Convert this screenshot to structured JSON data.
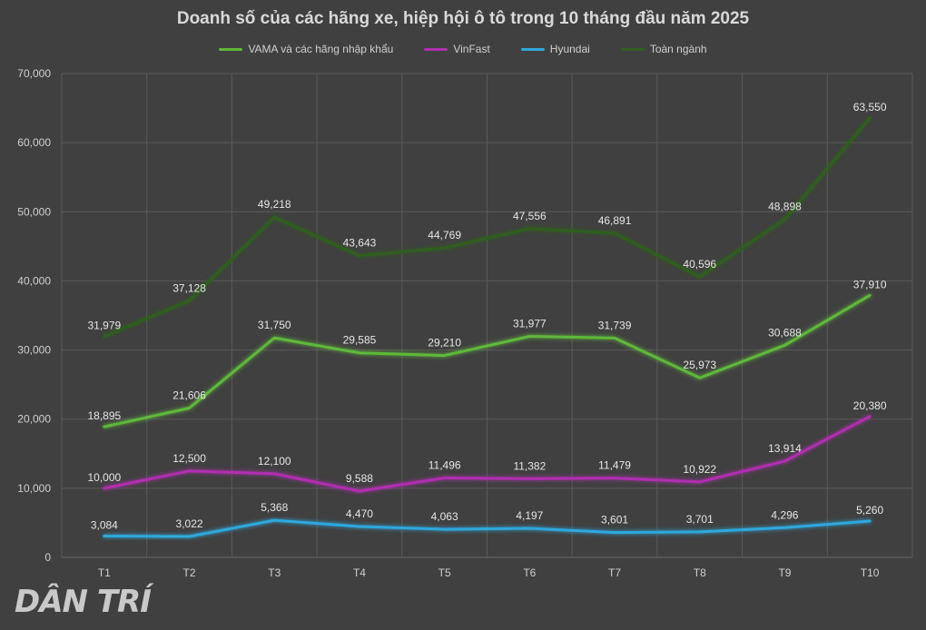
{
  "chart_data": {
    "type": "line",
    "title": "Doanh số của các hãng xe, hiệp hội ô tô trong 10 tháng đầu năm 2025",
    "categories": [
      "T1",
      "T2",
      "T3",
      "T4",
      "T5",
      "T6",
      "T7",
      "T8",
      "T9",
      "T10"
    ],
    "ylim": [
      0,
      70000
    ],
    "yticks": [
      "0",
      "10,000",
      "20,000",
      "30,000",
      "40,000",
      "50,000",
      "60,000",
      "70,000"
    ],
    "grid": true,
    "legend_position": "top",
    "series": [
      {
        "name": "VAMA và các hãng nhập khẩu",
        "color": "#5fb83a",
        "values": [
          18895,
          21606,
          31750,
          29585,
          29210,
          31977,
          31739,
          25973,
          30688,
          37910
        ],
        "labels": [
          "18,895",
          "21,606",
          "31,750",
          "29,585",
          "29,210",
          "31,977",
          "31,739",
          "25,973",
          "30,688",
          "37,910"
        ]
      },
      {
        "name": "VinFast",
        "color": "#b02fb0",
        "values": [
          10000,
          12500,
          12100,
          9588,
          11496,
          11382,
          11479,
          10922,
          13914,
          20380
        ],
        "labels": [
          "10,000",
          "12,500",
          "12,100",
          "9,588",
          "11,496",
          "11,382",
          "11,479",
          "10,922",
          "13,914",
          "20,380"
        ]
      },
      {
        "name": "Hyundai",
        "color": "#2ea8dc",
        "values": [
          3084,
          3022,
          5368,
          4470,
          4063,
          4197,
          3601,
          3701,
          4296,
          5260
        ],
        "labels": [
          "3,084",
          "3,022",
          "5,368",
          "4,470",
          "4,063",
          "4,197",
          "3,601",
          "3,701",
          "4,296",
          "5,260"
        ]
      },
      {
        "name": "Toàn ngành",
        "color": "#2f5f1e",
        "values": [
          31979,
          37128,
          49218,
          43643,
          44769,
          47556,
          46891,
          40596,
          48898,
          63550
        ],
        "labels": [
          "31,979",
          "37,128",
          "49,218",
          "43,643",
          "44,769",
          "47,556",
          "46,891",
          "40,596",
          "48,898",
          "63,550"
        ]
      }
    ]
  },
  "logo_text": "DÂN TRÍ"
}
